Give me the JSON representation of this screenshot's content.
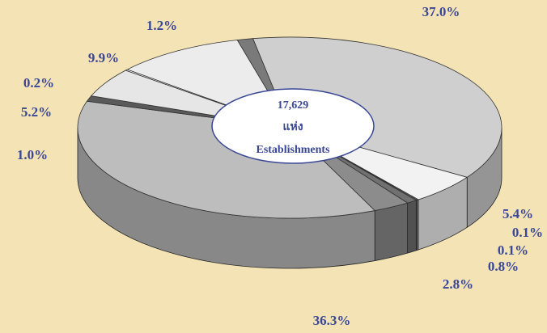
{
  "chart_data": {
    "type": "pie3d",
    "values": [
      37.0,
      5.4,
      0.1,
      0.1,
      0.8,
      2.8,
      36.3,
      1.0,
      5.2,
      0.2,
      9.9,
      1.2
    ],
    "value_labels": [
      "37.0%",
      "5.4%",
      "0.1%",
      "0.1%",
      "0.8%",
      "2.8%",
      "36.3%",
      "1.0%",
      "5.2%",
      "0.2%",
      "9.9%",
      "1.2%"
    ],
    "colors": [
      "#cfcfcf",
      "#f2f2f2",
      "#ffffff",
      "#9a9a9a",
      "#707070",
      "#8c8c8c",
      "#bdbdbd",
      "#5a5a5a",
      "#e6e6e6",
      "#ffffff",
      "#ececec",
      "#7a7a7a"
    ],
    "center_text": [
      "17,629",
      "แห่ง",
      "Establishments"
    ]
  }
}
